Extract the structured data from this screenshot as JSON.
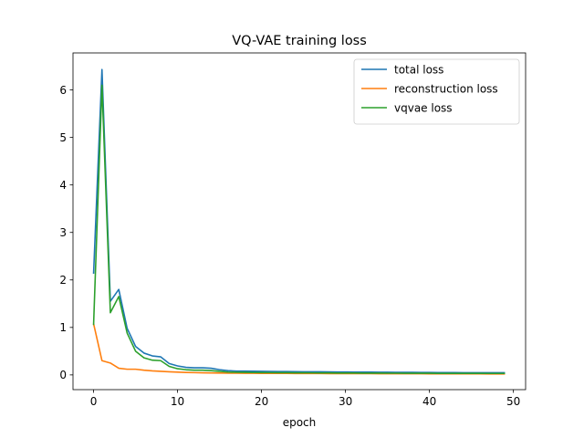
{
  "chart_data": {
    "type": "line",
    "title": "VQ-VAE training loss",
    "xlabel": "epoch",
    "ylabel": "",
    "xlim": [
      -2.45,
      51.45
    ],
    "ylim": [
      -0.31,
      6.78
    ],
    "xticks": [
      0,
      10,
      20,
      30,
      40,
      50
    ],
    "yticks": [
      0,
      1,
      2,
      3,
      4,
      5,
      6
    ],
    "grid": false,
    "legend_position": "top-right",
    "x": [
      0,
      1,
      2,
      3,
      4,
      5,
      6,
      7,
      8,
      9,
      10,
      11,
      12,
      13,
      14,
      15,
      16,
      17,
      18,
      19,
      20,
      21,
      22,
      23,
      24,
      25,
      26,
      27,
      28,
      29,
      30,
      31,
      32,
      33,
      34,
      35,
      36,
      37,
      38,
      39,
      40,
      41,
      42,
      43,
      44,
      45,
      46,
      47,
      48,
      49
    ],
    "series": [
      {
        "name": "total loss",
        "color": "#1f77b4",
        "values": [
          2.13,
          6.43,
          1.55,
          1.8,
          0.98,
          0.6,
          0.46,
          0.4,
          0.38,
          0.24,
          0.19,
          0.16,
          0.15,
          0.15,
          0.14,
          0.11,
          0.09,
          0.08,
          0.08,
          0.077,
          0.075,
          0.073,
          0.071,
          0.07,
          0.068,
          0.067,
          0.066,
          0.065,
          0.063,
          0.062,
          0.061,
          0.06,
          0.059,
          0.058,
          0.057,
          0.056,
          0.055,
          0.054,
          0.053,
          0.052,
          0.051,
          0.05,
          0.05,
          0.049,
          0.048,
          0.048,
          0.047,
          0.047,
          0.046,
          0.046
        ]
      },
      {
        "name": "reconstruction loss",
        "color": "#ff7f0e",
        "values": [
          1.08,
          0.3,
          0.25,
          0.14,
          0.12,
          0.12,
          0.1,
          0.085,
          0.075,
          0.065,
          0.058,
          0.052,
          0.048,
          0.045,
          0.042,
          0.04,
          0.038,
          0.036,
          0.035,
          0.034,
          0.033,
          0.032,
          0.031,
          0.031,
          0.03,
          0.03,
          0.029,
          0.029,
          0.028,
          0.028,
          0.027,
          0.027,
          0.026,
          0.026,
          0.025,
          0.025,
          0.025,
          0.024,
          0.024,
          0.024,
          0.023,
          0.023,
          0.023,
          0.022,
          0.022,
          0.022,
          0.022,
          0.021,
          0.021,
          0.021
        ]
      },
      {
        "name": "vqvae loss",
        "color": "#2ca02c",
        "values": [
          1.05,
          6.1,
          1.31,
          1.65,
          0.88,
          0.5,
          0.36,
          0.31,
          0.3,
          0.18,
          0.13,
          0.11,
          0.1,
          0.1,
          0.09,
          0.075,
          0.06,
          0.055,
          0.053,
          0.05,
          0.049,
          0.048,
          0.047,
          0.046,
          0.045,
          0.044,
          0.043,
          0.042,
          0.041,
          0.04,
          0.039,
          0.039,
          0.038,
          0.037,
          0.037,
          0.036,
          0.036,
          0.035,
          0.035,
          0.034,
          0.034,
          0.033,
          0.033,
          0.033,
          0.032,
          0.032,
          0.032,
          0.031,
          0.031,
          0.031
        ]
      }
    ]
  }
}
